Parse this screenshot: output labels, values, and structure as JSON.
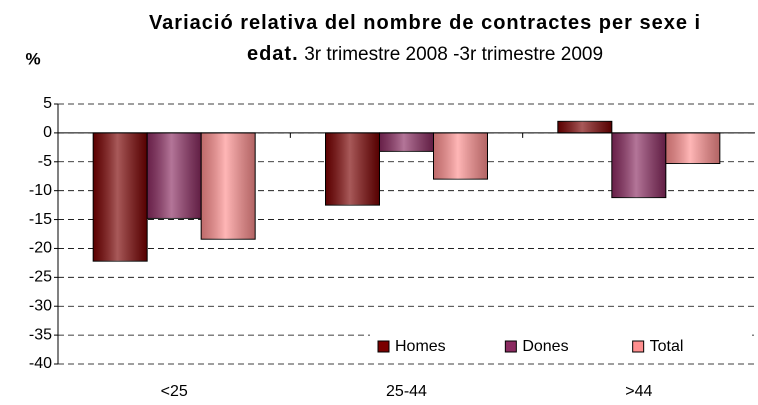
{
  "chart_data": {
    "type": "bar",
    "title": "Variació relativa del nombre de contractes per sexe i edat.",
    "subtitle": "3r trimestre 2008 -3r trimestre 2009",
    "y_label": "%",
    "categories": [
      "<25",
      "25-44",
      ">44"
    ],
    "series": [
      {
        "name": "Homes",
        "color": "#7a0000",
        "values": [
          -22.2,
          -12.5,
          2
        ]
      },
      {
        "name": "Dones",
        "color": "#8b2b61",
        "values": [
          -14.8,
          -3.2,
          -11.2
        ]
      },
      {
        "name": "Total",
        "color": "#ff8f8f",
        "values": [
          -18.4,
          -8,
          -5.3
        ]
      }
    ],
    "ylim": [
      -40,
      5
    ],
    "yticks": [
      5,
      0,
      -5,
      -10,
      -15,
      -20,
      -25,
      -30,
      -35,
      -40
    ],
    "grid": true,
    "legend": "bottom right"
  }
}
